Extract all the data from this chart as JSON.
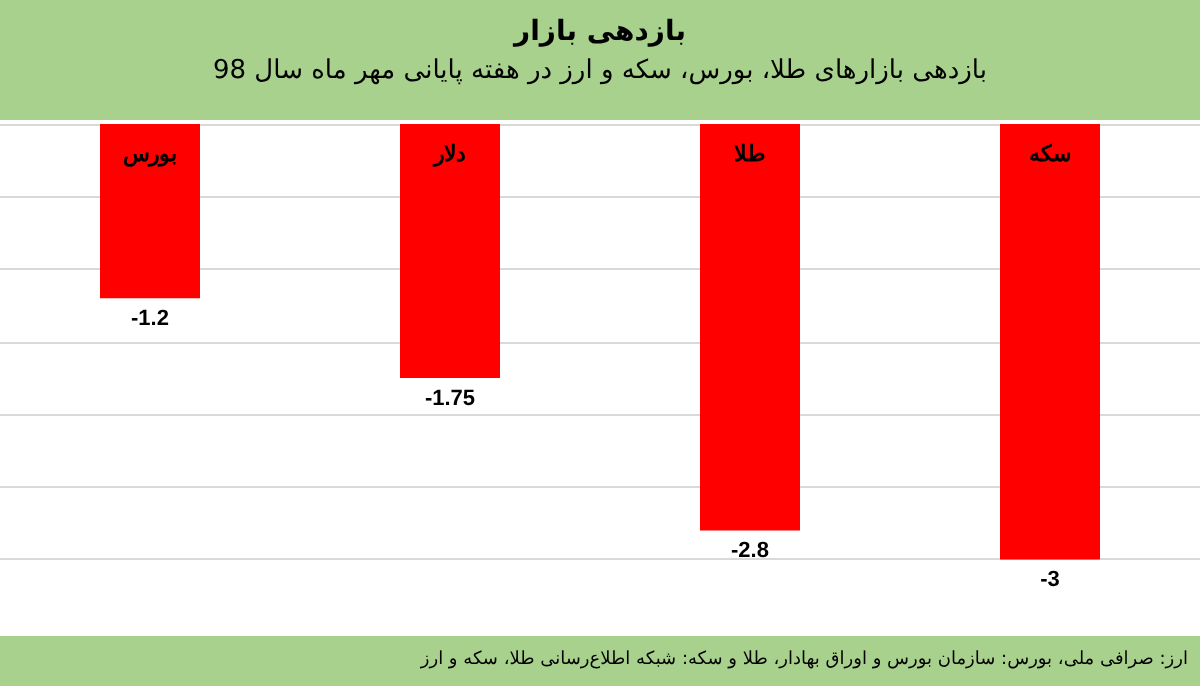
{
  "chart_data": {
    "type": "bar",
    "title": "بازدهی بازار",
    "subtitle": "بازدهی بازارهای طلا، بورس، سکه و ارز در هفته پایانی مهر ماه سال 98",
    "categories": [
      "بورس",
      "دلار",
      "طلا",
      "سکه"
    ],
    "values": [
      -1.2,
      -1.75,
      -2.8,
      -3
    ],
    "color": "#ff0000",
    "grid": "y",
    "data_labels": true,
    "annotations": [
      "ارز: صرافی ملی، بورس: سازمان بورس و اوراق بهادار، طلا و سکه: شبکه اطلاع‌رسانی طلا، سکه و ارز"
    ]
  }
}
